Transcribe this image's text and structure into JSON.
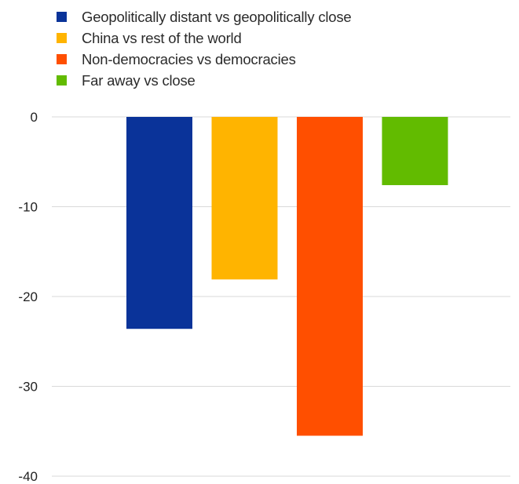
{
  "chart_data": {
    "type": "bar",
    "series": [
      {
        "name": "Geopolitically distant vs geopolitically close",
        "value": -23.6,
        "color": "#0a3399"
      },
      {
        "name": "China vs rest of the world",
        "value": -18.1,
        "color": "#ffb400"
      },
      {
        "name": "Non-democracies vs democracies",
        "value": -35.5,
        "color": "#ff4f00"
      },
      {
        "name": "Far away vs close",
        "value": -7.6,
        "color": "#62bb00"
      }
    ],
    "yticks": [
      "0",
      "-10",
      "-20",
      "-30",
      "-40"
    ],
    "ylim": [
      -40,
      0
    ],
    "grid": true,
    "legend_position": "top-left",
    "gridline_color": "#d9d9d9"
  }
}
